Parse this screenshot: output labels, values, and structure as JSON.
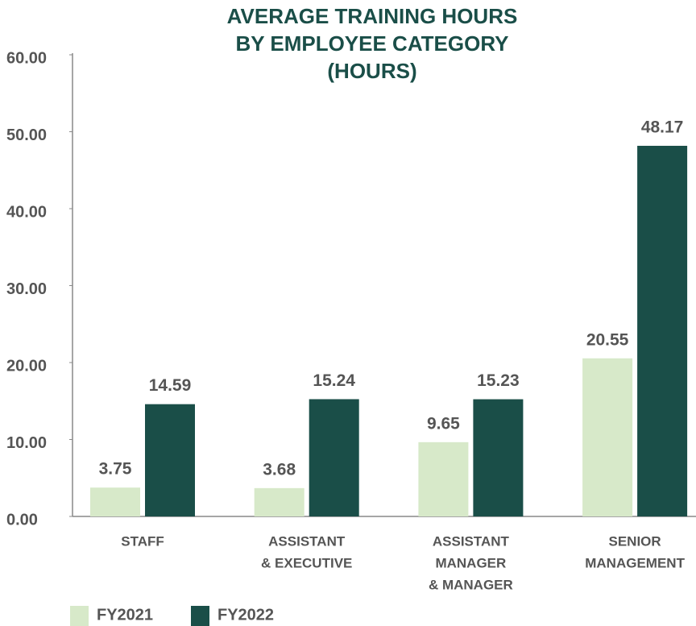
{
  "chart_data": {
    "type": "bar",
    "title": [
      "AVERAGE TRAINING HOURS",
      "BY EMPLOYEE CATEGORY",
      "(HOURS)"
    ],
    "categories": [
      [
        "STAFF"
      ],
      [
        "ASSISTANT",
        "& EXECUTIVE"
      ],
      [
        "ASSISTANT",
        "MANAGER",
        "& MANAGER"
      ],
      [
        "SENIOR",
        "MANAGEMENT"
      ]
    ],
    "series": [
      {
        "name": "FY2021",
        "color": "#d7e9c9",
        "values": [
          3.75,
          3.68,
          9.65,
          20.55
        ]
      },
      {
        "name": "FY2022",
        "color": "#1a4e48",
        "values": [
          14.59,
          15.24,
          15.23,
          48.17
        ]
      }
    ],
    "ylim": [
      0,
      60
    ],
    "yticks": [
      {
        "value": 0,
        "label": "0.00"
      },
      {
        "value": 10,
        "label": "10.00"
      },
      {
        "value": 20,
        "label": "20.00"
      },
      {
        "value": 30,
        "label": "30.00"
      },
      {
        "value": 40,
        "label": "40.00"
      },
      {
        "value": 50,
        "label": "50.00"
      },
      {
        "value": 60,
        "label": "60.00"
      }
    ],
    "legend": "bottom-left"
  }
}
